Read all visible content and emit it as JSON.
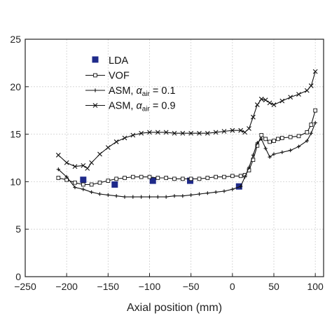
{
  "chart_data": {
    "type": "line",
    "title": "",
    "xlabel": "Axial position (mm)",
    "ylabel": "",
    "xlim": [
      -250,
      110
    ],
    "ylim": [
      0,
      25
    ],
    "xticks": [
      -250,
      -200,
      -150,
      -100,
      -50,
      0,
      50,
      100
    ],
    "yticks": [
      0,
      5,
      10,
      15,
      20,
      25
    ],
    "grid": true,
    "legend_position": "top-left",
    "legend": [
      {
        "key": "lda",
        "text": "LDA"
      },
      {
        "key": "vof",
        "text": "VOF"
      },
      {
        "key": "asm1",
        "text": "ASM, ",
        "alpha_symbol": "α",
        "alpha_sub": "air",
        "value_text": " = 0.1"
      },
      {
        "key": "asm9",
        "text": "ASM, ",
        "alpha_symbol": "α",
        "alpha_sub": "air",
        "value_text": " = 0.9"
      }
    ],
    "series": [
      {
        "key": "lda",
        "name": "LDA",
        "marker": "filled-square",
        "line": false,
        "color": "#1f2a8a",
        "x": [
          -180,
          -142,
          -96,
          -51,
          8
        ],
        "y": [
          10.2,
          9.7,
          10.1,
          10.1,
          9.5
        ]
      },
      {
        "key": "vof",
        "name": "VOF",
        "marker": "open-square",
        "line": true,
        "color": "#111111",
        "x": [
          -210,
          -200,
          -190,
          -180,
          -170,
          -160,
          -150,
          -140,
          -130,
          -120,
          -110,
          -100,
          -90,
          -80,
          -70,
          -60,
          -50,
          -40,
          -30,
          -20,
          -10,
          0,
          10,
          15,
          20,
          25,
          30,
          35,
          40,
          45,
          50,
          55,
          60,
          70,
          80,
          90,
          95,
          100
        ],
        "y": [
          10.4,
          10.2,
          9.9,
          9.7,
          9.7,
          9.9,
          10.1,
          10.3,
          10.4,
          10.5,
          10.5,
          10.5,
          10.4,
          10.4,
          10.3,
          10.3,
          10.3,
          10.3,
          10.4,
          10.5,
          10.5,
          10.6,
          10.6,
          10.7,
          11.2,
          12.3,
          13.8,
          14.9,
          14.5,
          14.2,
          14.3,
          14.5,
          14.6,
          14.7,
          14.8,
          15.2,
          16.0,
          17.5
        ]
      },
      {
        "key": "asm1",
        "name": "ASM, αair = 0.1",
        "marker": "plus",
        "line": true,
        "color": "#111111",
        "x": [
          -210,
          -200,
          -190,
          -180,
          -170,
          -160,
          -150,
          -140,
          -130,
          -120,
          -110,
          -100,
          -90,
          -80,
          -70,
          -60,
          -50,
          -40,
          -30,
          -20,
          -10,
          0,
          10,
          15,
          20,
          25,
          30,
          35,
          40,
          45,
          50,
          60,
          70,
          80,
          90,
          95,
          100
        ],
        "y": [
          11.3,
          10.5,
          9.4,
          9.2,
          8.9,
          8.7,
          8.6,
          8.5,
          8.4,
          8.4,
          8.4,
          8.4,
          8.4,
          8.4,
          8.5,
          8.5,
          8.6,
          8.7,
          8.8,
          8.9,
          9.0,
          9.2,
          9.5,
          10.5,
          11.5,
          12.8,
          14.1,
          14.5,
          13.5,
          12.6,
          12.9,
          13.1,
          13.3,
          13.7,
          14.3,
          15.1,
          16.2
        ]
      },
      {
        "key": "asm9",
        "name": "ASM, αair = 0.9",
        "marker": "x",
        "line": true,
        "color": "#111111",
        "x": [
          -210,
          -200,
          -190,
          -180,
          -175,
          -170,
          -160,
          -150,
          -140,
          -130,
          -120,
          -110,
          -100,
          -90,
          -80,
          -70,
          -60,
          -50,
          -40,
          -30,
          -20,
          -10,
          0,
          10,
          15,
          20,
          25,
          30,
          35,
          40,
          45,
          50,
          60,
          70,
          80,
          90,
          95,
          100
        ],
        "y": [
          12.8,
          12.0,
          11.6,
          11.7,
          11.4,
          12.0,
          12.9,
          13.6,
          14.2,
          14.6,
          14.9,
          15.1,
          15.2,
          15.2,
          15.2,
          15.1,
          15.1,
          15.1,
          15.1,
          15.1,
          15.2,
          15.3,
          15.4,
          15.4,
          15.2,
          15.6,
          16.8,
          18.1,
          18.7,
          18.6,
          18.3,
          18.1,
          18.5,
          18.9,
          19.2,
          19.6,
          20.1,
          21.6
        ]
      }
    ]
  }
}
